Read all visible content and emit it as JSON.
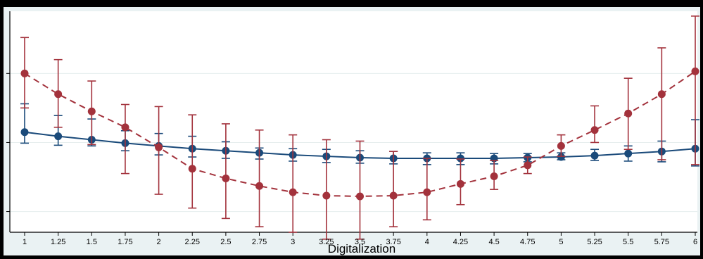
{
  "chart_data": {
    "type": "line",
    "xlabel": "Digitalization",
    "ylabel": "",
    "x": [
      1,
      1.25,
      1.5,
      1.75,
      2,
      2.25,
      2.5,
      2.75,
      3,
      3.25,
      3.5,
      3.75,
      4,
      4.25,
      4.5,
      4.75,
      5,
      5.25,
      5.5,
      5.75,
      6
    ],
    "x_tick_labels": [
      "1",
      "1.25",
      "1.5",
      "1.75",
      "2",
      "2.25",
      "2.5",
      "2.75",
      "3",
      "3.25",
      "3.5",
      "3.75",
      "4",
      "4.25",
      "4.5",
      "4.75",
      "5",
      "5.25",
      "5.5",
      "5.75",
      "6"
    ],
    "ylim": [
      0,
      3.2
    ],
    "y_ticks": [
      0.3,
      1.3,
      2.3
    ],
    "grid": true,
    "series": [
      {
        "color": "#1a4a7a",
        "linestyle": "solid",
        "values": [
          1.45,
          1.39,
          1.34,
          1.29,
          1.25,
          1.21,
          1.18,
          1.15,
          1.12,
          1.1,
          1.08,
          1.07,
          1.07,
          1.07,
          1.07,
          1.08,
          1.09,
          1.11,
          1.14,
          1.17,
          1.21
        ],
        "lower": [
          1.29,
          1.26,
          1.25,
          1.18,
          1.12,
          1.09,
          1.07,
          1.06,
          1.03,
          1.01,
          1.0,
          0.99,
          0.98,
          0.98,
          0.99,
          1.02,
          1.05,
          1.04,
          1.03,
          1.02,
          0.96
        ],
        "upper": [
          1.86,
          1.69,
          1.64,
          1.47,
          1.43,
          1.39,
          1.31,
          1.22,
          1.21,
          1.2,
          1.18,
          1.17,
          1.15,
          1.15,
          1.14,
          1.14,
          1.15,
          1.2,
          1.25,
          1.32,
          1.63
        ]
      },
      {
        "color": "#a3323c",
        "linestyle": "dashed",
        "values": [
          2.3,
          2.0,
          1.75,
          1.52,
          1.23,
          0.92,
          0.78,
          0.67,
          0.58,
          0.53,
          0.52,
          0.53,
          0.58,
          0.7,
          0.81,
          0.97,
          1.25,
          1.48,
          1.72,
          2.0,
          2.33
        ],
        "lower": [
          1.8,
          1.52,
          1.27,
          0.85,
          0.55,
          0.35,
          0.2,
          0.08,
          0.0,
          -0.1,
          -0.1,
          0.08,
          0.18,
          0.4,
          0.62,
          0.85,
          1.1,
          1.3,
          1.2,
          1.05,
          0.98
        ],
        "upper": [
          2.82,
          2.5,
          2.19,
          1.85,
          1.82,
          1.7,
          1.57,
          1.48,
          1.41,
          1.34,
          1.32,
          1.17,
          1.07,
          1.06,
          1.04,
          1.09,
          1.41,
          1.83,
          2.23,
          2.67,
          3.13
        ]
      }
    ]
  }
}
